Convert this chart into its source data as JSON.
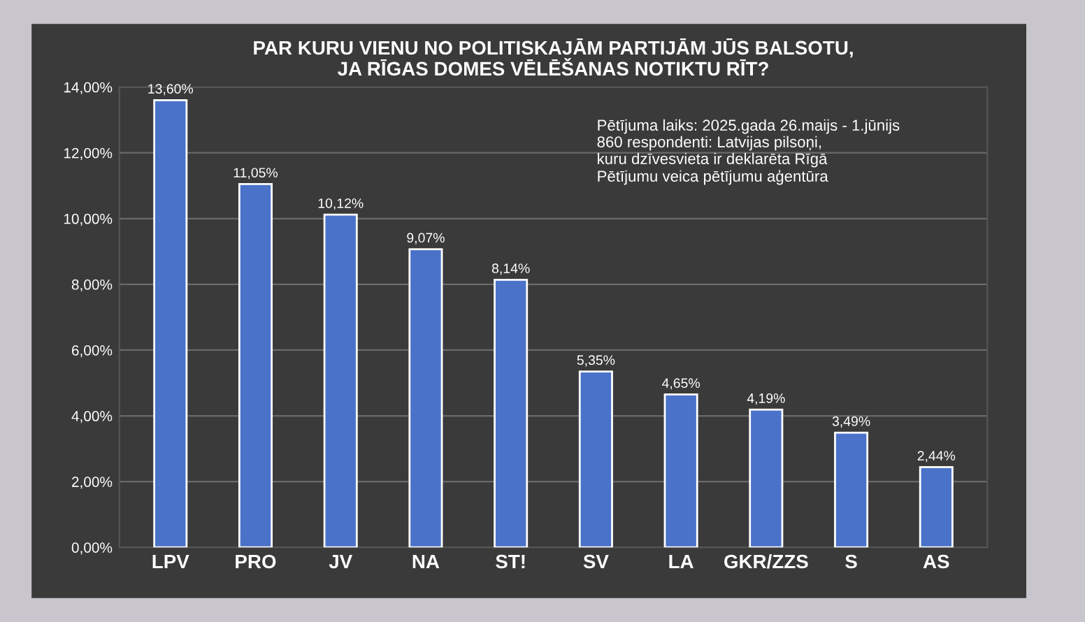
{
  "chart_data": {
    "type": "bar",
    "title": "PAR KURU VIENU NO POLITISKAJĀM PARTIJĀM JŪS BALSOTU,\nJA RĪGAS DOMES VĒLĒŠANAS NOTIKTU RĪT?",
    "categories": [
      "LPV",
      "PRO",
      "JV",
      "NA",
      "ST!",
      "SV",
      "LA",
      "GKR/ZZS",
      "S",
      "AS"
    ],
    "values": [
      13.6,
      11.05,
      10.12,
      9.07,
      8.14,
      5.35,
      4.65,
      4.19,
      3.49,
      2.44
    ],
    "value_labels": [
      "13,60%",
      "11,05%",
      "10,12%",
      "9,07%",
      "8,14%",
      "5,35%",
      "4,65%",
      "4,19%",
      "3,49%",
      "2,44%"
    ],
    "color": "#4a72c8",
    "ylim": [
      0,
      14
    ],
    "yticks": [
      {
        "value": 0,
        "label": "0,00%"
      },
      {
        "value": 2,
        "label": "2,00%"
      },
      {
        "value": 4,
        "label": "4,00%"
      },
      {
        "value": 6,
        "label": "6,00%"
      },
      {
        "value": 8,
        "label": "8,00%"
      },
      {
        "value": 10,
        "label": "10,00%"
      },
      {
        "value": 12,
        "label": "12,00%"
      },
      {
        "value": 14,
        "label": "14,00%"
      }
    ],
    "grid": "y",
    "annotations": [
      "Pētījuma laiks: 2025.gada 26.maijs - 1.jūnijs\n860 respondenti: Latvijas pilsoņi,\nkuru dzīvesvieta ir deklarēta Rīgā\nPētījumu veica pētījumu aģentūra"
    ]
  }
}
